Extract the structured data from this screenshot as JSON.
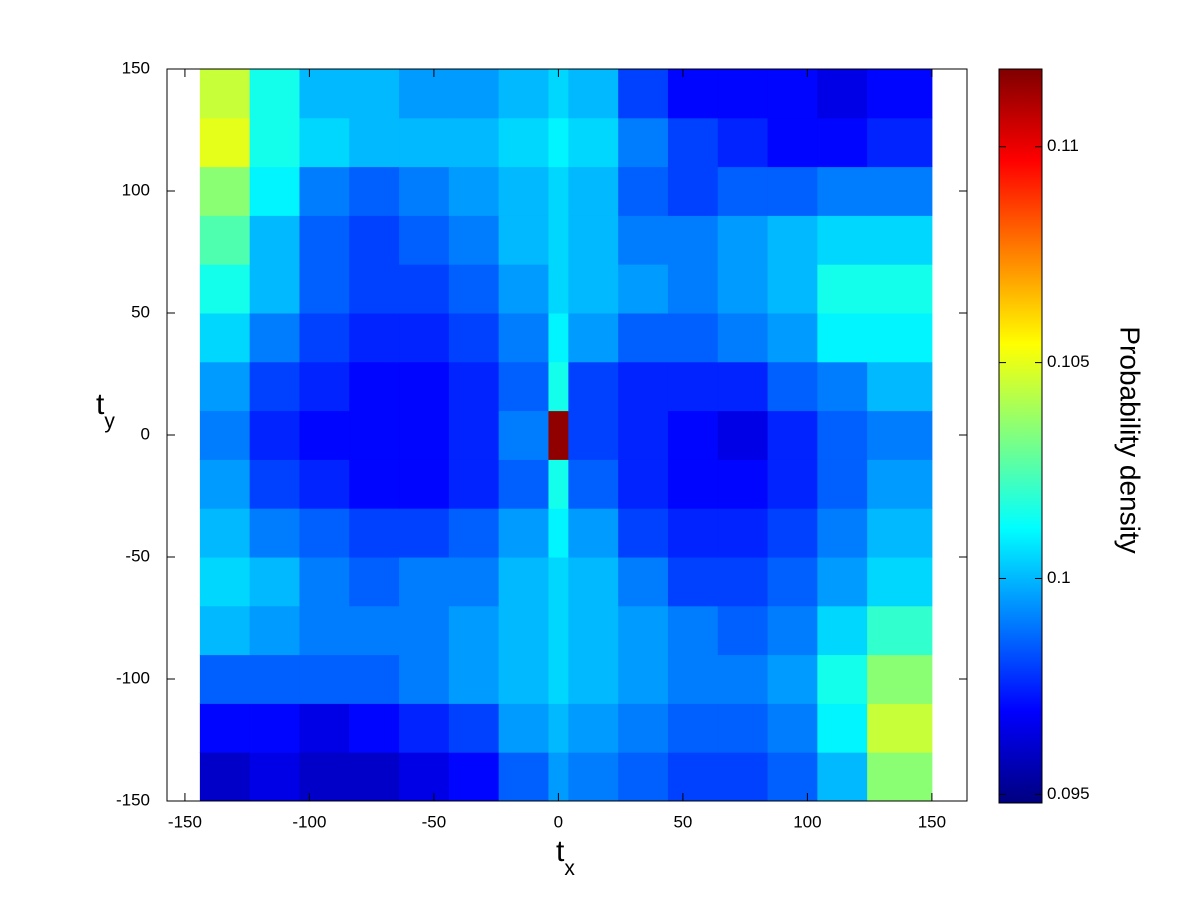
{
  "chart_data": {
    "type": "heatmap",
    "xlabel": "t",
    "xlabel_subscript": "x",
    "ylabel": "t",
    "ylabel_subscript": "y",
    "colorbar_label": "Probability density",
    "colormap": "jet",
    "xlim": [
      -157.2,
      164.1
    ],
    "xticks": [
      -150,
      -100,
      -50,
      0,
      50,
      100,
      150
    ],
    "ylim": [
      -150,
      150
    ],
    "yticks": [
      -150,
      -100,
      -50,
      0,
      50,
      100,
      150
    ],
    "clim": [
      0.0948,
      0.1118
    ],
    "cticks": [
      0.095,
      0.1,
      0.105,
      0.11
    ],
    "xbins": [
      -144,
      -124,
      -104,
      -84,
      -64,
      -44,
      -24,
      -4,
      4,
      24,
      44,
      64,
      84,
      104,
      124,
      150
    ],
    "ybins": [
      -150,
      -130,
      -110,
      -90,
      -70,
      -50,
      -30,
      -10,
      10,
      30,
      50,
      70,
      90,
      110,
      130,
      150
    ],
    "z": [
      [
        0.096,
        0.0965,
        0.096,
        0.096,
        0.0965,
        0.097,
        0.0985,
        0.0995,
        0.099,
        0.0985,
        0.098,
        0.098,
        0.0985,
        0.1,
        0.1035
      ],
      [
        0.097,
        0.097,
        0.0965,
        0.097,
        0.0975,
        0.098,
        0.0995,
        0.1,
        0.0995,
        0.099,
        0.0985,
        0.0985,
        0.099,
        0.101,
        0.1045
      ],
      [
        0.0985,
        0.0985,
        0.0985,
        0.0985,
        0.099,
        0.0995,
        0.1,
        0.1005,
        0.1,
        0.0995,
        0.099,
        0.099,
        0.0995,
        0.1015,
        0.1035
      ],
      [
        0.1,
        0.0995,
        0.099,
        0.099,
        0.099,
        0.0995,
        0.1,
        0.1005,
        0.1,
        0.0995,
        0.099,
        0.0985,
        0.099,
        0.1005,
        0.102
      ],
      [
        0.1005,
        0.1,
        0.099,
        0.0985,
        0.099,
        0.099,
        0.1,
        0.1005,
        0.1,
        0.099,
        0.098,
        0.098,
        0.0985,
        0.0995,
        0.1005
      ],
      [
        0.1,
        0.099,
        0.0985,
        0.098,
        0.098,
        0.0985,
        0.0995,
        0.101,
        0.0995,
        0.098,
        0.0975,
        0.0975,
        0.098,
        0.099,
        0.1
      ],
      [
        0.0995,
        0.098,
        0.0975,
        0.097,
        0.097,
        0.0975,
        0.0985,
        0.1015,
        0.0985,
        0.0975,
        0.097,
        0.097,
        0.0975,
        0.0985,
        0.0995
      ],
      [
        0.099,
        0.0975,
        0.097,
        0.097,
        0.097,
        0.0975,
        0.099,
        0.1115,
        0.098,
        0.0975,
        0.097,
        0.0965,
        0.0975,
        0.0985,
        0.099
      ],
      [
        0.0995,
        0.098,
        0.0975,
        0.097,
        0.097,
        0.0975,
        0.0985,
        0.1015,
        0.098,
        0.0975,
        0.0975,
        0.0975,
        0.0985,
        0.099,
        0.1
      ],
      [
        0.1005,
        0.099,
        0.098,
        0.0975,
        0.0975,
        0.098,
        0.099,
        0.101,
        0.0995,
        0.0985,
        0.0985,
        0.099,
        0.0995,
        0.101,
        0.101
      ],
      [
        0.1015,
        0.1,
        0.0985,
        0.098,
        0.098,
        0.0985,
        0.0995,
        0.1005,
        0.1,
        0.0995,
        0.099,
        0.0995,
        0.1,
        0.1015,
        0.1015
      ],
      [
        0.1025,
        0.1,
        0.0985,
        0.098,
        0.0985,
        0.099,
        0.1,
        0.1005,
        0.1,
        0.099,
        0.099,
        0.0995,
        0.1,
        0.1005,
        0.1005
      ],
      [
        0.1035,
        0.101,
        0.099,
        0.0985,
        0.099,
        0.0995,
        0.1,
        0.1005,
        0.1,
        0.0985,
        0.098,
        0.0985,
        0.0985,
        0.099,
        0.099
      ],
      [
        0.105,
        0.1015,
        0.1005,
        0.1,
        0.1,
        0.1,
        0.1005,
        0.101,
        0.1005,
        0.099,
        0.098,
        0.0975,
        0.097,
        0.097,
        0.0975
      ],
      [
        0.1045,
        0.1015,
        0.1,
        0.1,
        0.0995,
        0.0995,
        0.1,
        0.1005,
        0.1,
        0.098,
        0.097,
        0.097,
        0.097,
        0.0965,
        0.097
      ]
    ]
  }
}
